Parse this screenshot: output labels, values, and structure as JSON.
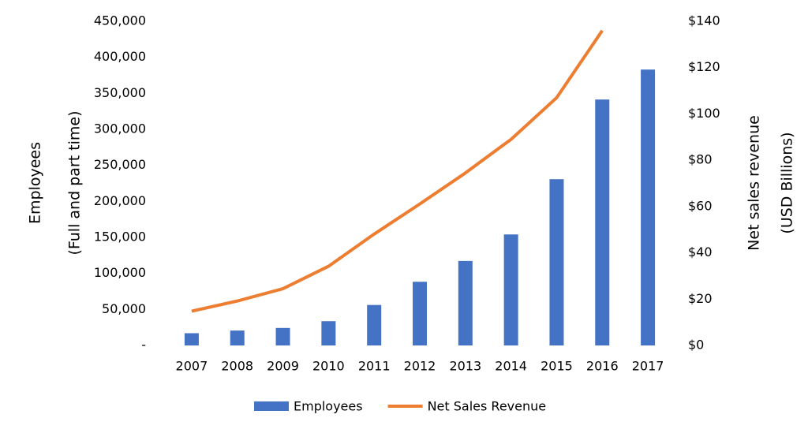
{
  "chart_data": {
    "type": "bar-line",
    "categories": [
      "2007",
      "2008",
      "2009",
      "2010",
      "2011",
      "2012",
      "2013",
      "2014",
      "2015",
      "2016",
      "2017"
    ],
    "series": [
      {
        "name": "Employees",
        "type": "bar",
        "color": "#4472c4",
        "values": [
          17000,
          20700,
          24300,
          33700,
          56200,
          88400,
          117300,
          154100,
          230800,
          341400,
          383000
        ]
      },
      {
        "name": "Net Sales Revenue",
        "type": "line",
        "axis": "y2",
        "color": "#ed7d31",
        "values": [
          14.8,
          19.2,
          24.5,
          34.2,
          48.1,
          61.1,
          74.5,
          89.0,
          107.0,
          136.0,
          null
        ]
      }
    ],
    "ylabel": [
      "Employees",
      "(Full and part time)"
    ],
    "y2label": [
      "Net sales revenue",
      "(USD Billions)"
    ],
    "ylim": [
      0,
      450000
    ],
    "yticks": [
      {
        "value": 0,
        "label": "-"
      },
      {
        "value": 50000,
        "label": "50,000"
      },
      {
        "value": 100000,
        "label": "100,000"
      },
      {
        "value": 150000,
        "label": "150,000"
      },
      {
        "value": 200000,
        "label": "200,000"
      },
      {
        "value": 250000,
        "label": "250,000"
      },
      {
        "value": 300000,
        "label": "300,000"
      },
      {
        "value": 350000,
        "label": "350,000"
      },
      {
        "value": 400000,
        "label": "400,000"
      },
      {
        "value": 450000,
        "label": "450,000"
      }
    ],
    "y2lim": [
      0,
      140
    ],
    "y2ticks": [
      {
        "value": 0,
        "label": "$0"
      },
      {
        "value": 20,
        "label": "$20"
      },
      {
        "value": 40,
        "label": "$40"
      },
      {
        "value": 60,
        "label": "$60"
      },
      {
        "value": 80,
        "label": "$80"
      },
      {
        "value": 100,
        "label": "$100"
      },
      {
        "value": 120,
        "label": "$120"
      },
      {
        "value": 140,
        "label": "$140"
      }
    ],
    "grid": false,
    "legend": "bottom"
  }
}
